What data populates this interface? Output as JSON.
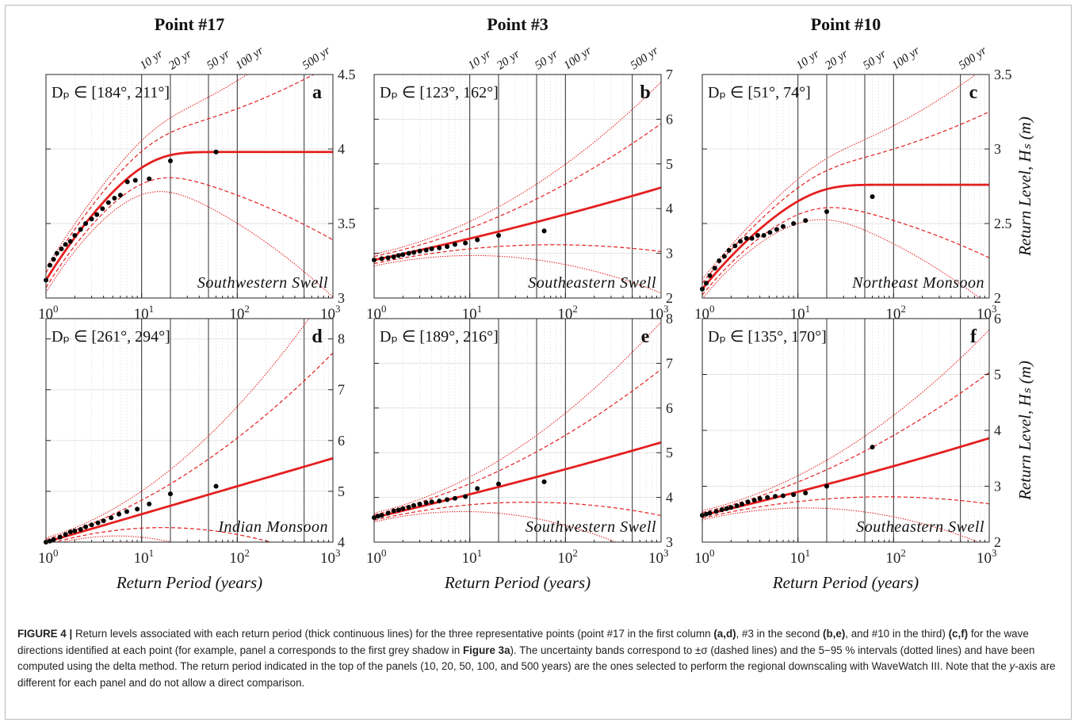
{
  "column_titles": [
    "Point #17",
    "Point #3",
    "Point #10"
  ],
  "return_period_markers": [
    "10 yr",
    "20 yr",
    "50 yr",
    "100 yr",
    "500 yr"
  ],
  "x_axis_label": "Return Period (years)",
  "y_axis_label": "Return Level, H_s (m)",
  "x_tick_labels": [
    "10^0",
    "10^1",
    "10^2",
    "10^3"
  ],
  "colors": {
    "curve": "#e41f1f",
    "points": "#000000",
    "grid": "#dedede",
    "markers": "#333333"
  },
  "chart_data": [
    {
      "type": "line",
      "panel": "a",
      "point": "Point #17",
      "direction": "D_p ∈ [184°, 211°]",
      "label": "Southwestern Swell",
      "xscale": "log",
      "xlim": [
        1,
        1000
      ],
      "ylim": [
        3,
        4.5
      ],
      "yticks": [
        3,
        3.5,
        4,
        4.5
      ],
      "ytick_labels": [
        "3",
        "3.5",
        "4",
        "4.5"
      ],
      "curve": {
        "y0": 3.12,
        "yinf": 3.98,
        "rate": 0.38,
        "sigma": 0.05,
        "sigma_growth": 0.12
      },
      "points": [
        [
          1.0,
          3.12
        ],
        [
          1.1,
          3.22
        ],
        [
          1.2,
          3.26
        ],
        [
          1.3,
          3.3
        ],
        [
          1.45,
          3.33
        ],
        [
          1.6,
          3.36
        ],
        [
          1.8,
          3.38
        ],
        [
          2.0,
          3.42
        ],
        [
          2.3,
          3.46
        ],
        [
          2.6,
          3.5
        ],
        [
          3.0,
          3.53
        ],
        [
          3.4,
          3.56
        ],
        [
          3.9,
          3.6
        ],
        [
          4.5,
          3.64
        ],
        [
          5.2,
          3.67
        ],
        [
          6.0,
          3.69
        ],
        [
          7.1,
          3.78
        ],
        [
          8.6,
          3.79
        ],
        [
          12,
          3.8
        ],
        [
          20,
          3.92
        ],
        [
          60,
          3.98
        ]
      ]
    },
    {
      "type": "line",
      "panel": "b",
      "point": "Point #3",
      "direction": "D_p ∈ [123°, 162°]",
      "label": "Southeastern Swell",
      "xscale": "log",
      "xlim": [
        1,
        1000
      ],
      "ylim": [
        2,
        7
      ],
      "yticks": [
        2,
        3,
        4,
        5,
        6,
        7
      ],
      "ytick_labels": [
        "2",
        "3",
        "4",
        "5",
        "6",
        "7"
      ],
      "curve": {
        "y0": 2.85,
        "slope": 0.45,
        "curv": 0.03,
        "sigma": 0.08,
        "sigma_growth": 0.3
      },
      "points": [
        [
          1.0,
          2.85
        ],
        [
          1.2,
          2.88
        ],
        [
          1.4,
          2.9
        ],
        [
          1.6,
          2.92
        ],
        [
          1.8,
          2.95
        ],
        [
          2.0,
          2.97
        ],
        [
          2.3,
          3.0
        ],
        [
          2.6,
          3.02
        ],
        [
          3.0,
          3.05
        ],
        [
          3.5,
          3.07
        ],
        [
          4.0,
          3.1
        ],
        [
          4.8,
          3.12
        ],
        [
          5.8,
          3.15
        ],
        [
          7.0,
          3.2
        ],
        [
          9.0,
          3.23
        ],
        [
          12,
          3.3
        ],
        [
          20,
          3.4
        ],
        [
          60,
          3.5
        ]
      ]
    },
    {
      "type": "line",
      "panel": "c",
      "point": "Point #10",
      "direction": "D_p ∈ [51°, 74°]",
      "label": "Northeast Monsoon",
      "xscale": "log",
      "xlim": [
        1,
        1000
      ],
      "ylim": [
        2,
        3.5
      ],
      "yticks": [
        2,
        2.5,
        3,
        3.5
      ],
      "ytick_labels": [
        "2",
        "2.5",
        "3",
        "3.5"
      ],
      "curve": {
        "y0": 2.06,
        "yinf": 2.76,
        "rate": 0.3,
        "sigma": 0.04,
        "sigma_growth": 0.1
      },
      "points": [
        [
          1.0,
          2.06
        ],
        [
          1.1,
          2.1
        ],
        [
          1.2,
          2.15
        ],
        [
          1.35,
          2.2
        ],
        [
          1.5,
          2.25
        ],
        [
          1.7,
          2.28
        ],
        [
          1.9,
          2.32
        ],
        [
          2.2,
          2.35
        ],
        [
          2.5,
          2.38
        ],
        [
          2.9,
          2.4
        ],
        [
          3.3,
          2.4
        ],
        [
          3.8,
          2.42
        ],
        [
          4.4,
          2.42
        ],
        [
          5.1,
          2.44
        ],
        [
          6.0,
          2.46
        ],
        [
          7.0,
          2.48
        ],
        [
          9.0,
          2.5
        ],
        [
          12,
          2.52
        ],
        [
          20,
          2.58
        ],
        [
          60,
          2.68
        ]
      ]
    },
    {
      "type": "line",
      "panel": "d",
      "point": "Point #17",
      "direction": "D_p ∈ [261°, 294°]",
      "label": "Indian Monsoon",
      "xscale": "log",
      "xlim": [
        1,
        1000
      ],
      "ylim": [
        4,
        8.4
      ],
      "yticks": [
        4,
        5,
        6,
        7,
        8
      ],
      "ytick_labels": [
        "4",
        "5",
        "6",
        "7",
        "8"
      ],
      "curve": {
        "y0": 4.0,
        "slope": 0.55,
        "curv": 0.0,
        "sigma": 0.05,
        "sigma_growth": 0.45
      },
      "points": [
        [
          1.0,
          4.0
        ],
        [
          1.1,
          4.02
        ],
        [
          1.2,
          4.05
        ],
        [
          1.4,
          4.1
        ],
        [
          1.6,
          4.15
        ],
        [
          1.8,
          4.2
        ],
        [
          2.0,
          4.22
        ],
        [
          2.3,
          4.25
        ],
        [
          2.6,
          4.3
        ],
        [
          3.0,
          4.34
        ],
        [
          3.5,
          4.38
        ],
        [
          4.0,
          4.42
        ],
        [
          4.8,
          4.48
        ],
        [
          5.8,
          4.55
        ],
        [
          7.0,
          4.6
        ],
        [
          9.0,
          4.65
        ],
        [
          12,
          4.75
        ],
        [
          20,
          4.95
        ],
        [
          60,
          5.1
        ]
      ]
    },
    {
      "type": "line",
      "panel": "e",
      "point": "Point #3",
      "direction": "D_p ∈ [189°, 216°]",
      "label": "Southwestern Swell",
      "xscale": "log",
      "xlim": [
        1,
        1000
      ],
      "ylim": [
        3,
        8
      ],
      "yticks": [
        3,
        4,
        5,
        6,
        7,
        8
      ],
      "ytick_labels": [
        "3",
        "4",
        "5",
        "6",
        "7",
        "8"
      ],
      "curve": {
        "y0": 3.55,
        "slope": 0.5,
        "curv": 0.02,
        "sigma": 0.06,
        "sigma_growth": 0.35
      },
      "points": [
        [
          1.0,
          3.55
        ],
        [
          1.1,
          3.58
        ],
        [
          1.2,
          3.6
        ],
        [
          1.4,
          3.65
        ],
        [
          1.6,
          3.7
        ],
        [
          1.8,
          3.72
        ],
        [
          2.0,
          3.75
        ],
        [
          2.3,
          3.78
        ],
        [
          2.6,
          3.82
        ],
        [
          3.0,
          3.85
        ],
        [
          3.5,
          3.88
        ],
        [
          4.0,
          3.9
        ],
        [
          4.8,
          3.92
        ],
        [
          5.8,
          3.95
        ],
        [
          7.0,
          3.98
        ],
        [
          9.0,
          4.02
        ],
        [
          12,
          4.2
        ],
        [
          20,
          4.3
        ],
        [
          60,
          4.35
        ]
      ]
    },
    {
      "type": "line",
      "panel": "f",
      "point": "Point #10",
      "direction": "D_p ∈ [135°, 170°]",
      "label": "Southeastern Swell",
      "xscale": "log",
      "xlim": [
        1,
        1000
      ],
      "ylim": [
        2,
        6
      ],
      "yticks": [
        2,
        3,
        4,
        5,
        6
      ],
      "ytick_labels": [
        "2",
        "3",
        "4",
        "5",
        "6"
      ],
      "curve": {
        "y0": 2.48,
        "slope": 0.4,
        "curv": 0.02,
        "sigma": 0.05,
        "sigma_growth": 0.25
      },
      "points": [
        [
          1.0,
          2.48
        ],
        [
          1.1,
          2.5
        ],
        [
          1.2,
          2.52
        ],
        [
          1.4,
          2.55
        ],
        [
          1.6,
          2.58
        ],
        [
          1.8,
          2.6
        ],
        [
          2.0,
          2.62
        ],
        [
          2.3,
          2.65
        ],
        [
          2.6,
          2.68
        ],
        [
          3.0,
          2.72
        ],
        [
          3.5,
          2.75
        ],
        [
          4.0,
          2.78
        ],
        [
          4.8,
          2.8
        ],
        [
          5.8,
          2.82
        ],
        [
          7.0,
          2.83
        ],
        [
          9.0,
          2.85
        ],
        [
          12,
          2.88
        ],
        [
          20,
          3.0
        ],
        [
          60,
          3.7
        ]
      ]
    }
  ],
  "caption": {
    "label": "FIGURE 4 |",
    "segments": [
      {
        "t": " Return levels associated with each return period (thick continuous lines) for the three representative points (point #17 in the first column ",
        "s": "n"
      },
      {
        "t": "(a,d)",
        "s": "b"
      },
      {
        "t": ", #3 in the second ",
        "s": "n"
      },
      {
        "t": "(b,e)",
        "s": "b"
      },
      {
        "t": ", and #10 in the third) ",
        "s": "n"
      },
      {
        "t": "(c,f)",
        "s": "b"
      },
      {
        "t": " for the wave directions identified at each point (for example, panel a corresponds to the first grey shadow in ",
        "s": "n"
      },
      {
        "t": "Figure 3a",
        "s": "b"
      },
      {
        "t": "). The uncertainty bands correspond to ±σ (dashed lines) and the 5−95 % intervals (dotted lines) and have been computed using the delta method. The return period indicated in the top of the panels (10, 20, 50, 100, and 500 years) are the ones selected to perform the regional downscaling with WaveWatch III. Note that the ",
        "s": "n"
      },
      {
        "t": "y",
        "s": "i"
      },
      {
        "t": "-axis are different for each panel and do not allow a direct comparison.",
        "s": "n"
      }
    ]
  }
}
